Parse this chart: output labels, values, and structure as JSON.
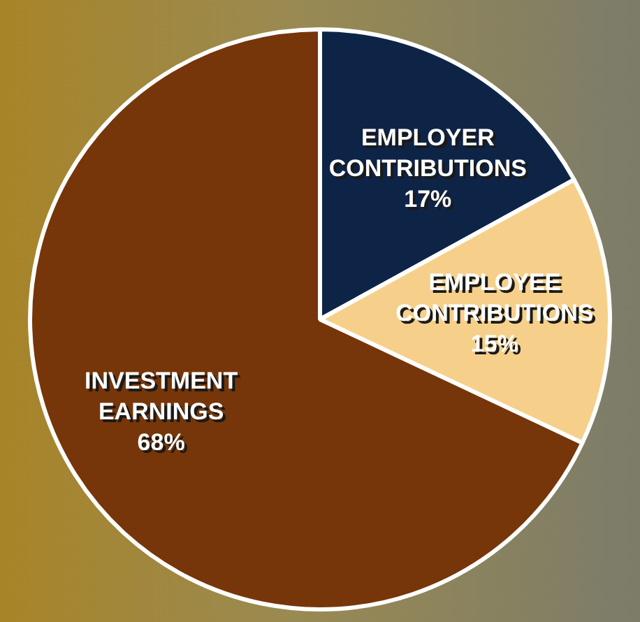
{
  "chart_data": {
    "type": "pie",
    "categories": [
      "EMPLOYER CONTRIBUTIONS",
      "EMPLOYEE CONTRIBUTIONS",
      "INVESTMENT EARNINGS"
    ],
    "values": [
      17,
      15,
      68
    ],
    "colors": [
      "#0e2447",
      "#f6d08a",
      "#763609"
    ],
    "value_labels": [
      "17%",
      "15%",
      "68%"
    ],
    "legend": false
  }
}
